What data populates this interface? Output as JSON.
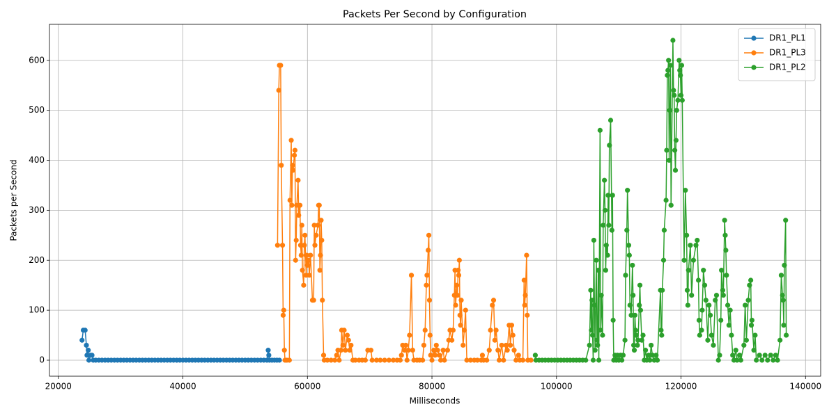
{
  "chart_data": {
    "type": "line",
    "title": "Packets Per Second by Configuration",
    "x_label": "Milliseconds",
    "y_label": "Packets per Second",
    "xlim": [
      18570,
      142430
    ],
    "xticks": [
      20000,
      40000,
      60000,
      80000,
      100000,
      120000,
      140000
    ],
    "ylim": [
      -32,
      672
    ],
    "yticks": [
      0,
      100,
      200,
      300,
      400,
      500,
      600
    ],
    "grid": true,
    "legend": "upper right",
    "series": [
      {
        "name": "DR1_PL1",
        "color": "#1f77b4",
        "x": [
          23800,
          24000,
          24300,
          24500,
          24600,
          24800,
          24900,
          25200,
          25400,
          25600,
          26000,
          26500,
          27000,
          27500,
          28000,
          28500,
          29000,
          29500,
          30000,
          30500,
          31000,
          31500,
          32000,
          32500,
          33000,
          33500,
          34000,
          34500,
          35000,
          35500,
          36000,
          36500,
          37000,
          37500,
          38000,
          38500,
          39000,
          39500,
          40000,
          40500,
          41000,
          41500,
          42000,
          42500,
          43000,
          43500,
          44000,
          44500,
          45000,
          45500,
          46000,
          46500,
          47000,
          47500,
          48000,
          48500,
          49000,
          49500,
          50000,
          50500,
          51000,
          51500,
          52000,
          52500,
          53000,
          53500,
          53700,
          53800,
          53900,
          54300,
          54700,
          55100,
          55500
        ],
        "values": [
          40,
          60,
          60,
          30,
          10,
          20,
          0,
          10,
          10,
          0,
          0,
          0,
          0,
          0,
          0,
          0,
          0,
          0,
          0,
          0,
          0,
          0,
          0,
          0,
          0,
          0,
          0,
          0,
          0,
          0,
          0,
          0,
          0,
          0,
          0,
          0,
          0,
          0,
          0,
          0,
          0,
          0,
          0,
          0,
          0,
          0,
          0,
          0,
          0,
          0,
          0,
          0,
          0,
          0,
          0,
          0,
          0,
          0,
          0,
          0,
          0,
          0,
          0,
          0,
          0,
          0,
          20,
          10,
          0,
          0,
          0,
          0,
          0
        ]
      },
      {
        "name": "DR1_PL3",
        "color": "#ff7f0e",
        "x": [
          55200,
          55400,
          55500,
          55700,
          55800,
          56000,
          56100,
          56200,
          56300,
          56400,
          56700,
          57100,
          57200,
          57400,
          57500,
          57600,
          57700,
          57900,
          58000,
          58100,
          58200,
          58300,
          58500,
          58600,
          58800,
          58900,
          59000,
          59100,
          59200,
          59400,
          59500,
          59600,
          59800,
          59900,
          60000,
          60200,
          60300,
          60500,
          60800,
          61000,
          61100,
          61200,
          61400,
          61700,
          61800,
          61900,
          62000,
          62100,
          62200,
          62300,
          62400,
          62600,
          62700,
          63200,
          63800,
          64400,
          64700,
          64900,
          65100,
          65400,
          65500,
          65700,
          65900,
          66100,
          66400,
          66600,
          66800,
          67000,
          67300,
          67700,
          68300,
          68800,
          69300,
          69700,
          70200,
          70400,
          71100,
          71700,
          72400,
          73100,
          73800,
          74400,
          74900,
          75100,
          75300,
          75600,
          75800,
          76000,
          76200,
          76400,
          76700,
          76900,
          77100,
          77600,
          78000,
          78500,
          78700,
          78900,
          79100,
          79200,
          79400,
          79500,
          79600,
          79700,
          79800,
          80000,
          80300,
          80500,
          80700,
          80900,
          81200,
          81400,
          81800,
          82000,
          82500,
          82700,
          82900,
          83200,
          83400,
          83600,
          83700,
          83800,
          84000,
          84100,
          84200,
          84300,
          84400,
          84500,
          84600,
          84700,
          85000,
          85200,
          85400,
          85600,
          86200,
          86800,
          87300,
          87900,
          88100,
          88300,
          88800,
          89200,
          89400,
          89700,
          89900,
          90100,
          90300,
          90600,
          90800,
          91200,
          91500,
          91900,
          92100,
          92400,
          92600,
          92800,
          93000,
          93200,
          93500,
          93900,
          94100,
          94600,
          94800,
          94900,
          95000,
          95200,
          95300,
          95400,
          95900
        ],
        "values": [
          230,
          540,
          590,
          590,
          390,
          230,
          90,
          100,
          20,
          0,
          0,
          0,
          320,
          440,
          310,
          390,
          380,
          410,
          420,
          200,
          240,
          310,
          360,
          290,
          310,
          230,
          210,
          270,
          180,
          150,
          230,
          250,
          170,
          210,
          190,
          200,
          170,
          210,
          120,
          120,
          270,
          230,
          250,
          270,
          310,
          310,
          180,
          210,
          280,
          240,
          120,
          10,
          0,
          0,
          0,
          0,
          10,
          20,
          0,
          20,
          60,
          30,
          60,
          20,
          50,
          40,
          20,
          30,
          0,
          0,
          0,
          0,
          0,
          20,
          20,
          0,
          0,
          0,
          0,
          0,
          0,
          0,
          0,
          10,
          30,
          20,
          30,
          0,
          20,
          50,
          170,
          20,
          0,
          0,
          0,
          0,
          30,
          60,
          150,
          170,
          220,
          250,
          120,
          50,
          10,
          0,
          20,
          10,
          30,
          20,
          10,
          0,
          20,
          0,
          20,
          40,
          60,
          40,
          60,
          130,
          180,
          110,
          150,
          130,
          180,
          170,
          200,
          90,
          70,
          120,
          30,
          60,
          100,
          0,
          0,
          0,
          0,
          0,
          10,
          0,
          0,
          20,
          60,
          110,
          120,
          40,
          60,
          20,
          0,
          30,
          0,
          30,
          20,
          70,
          30,
          70,
          50,
          20,
          0,
          10,
          0,
          0,
          160,
          110,
          130,
          210,
          90,
          0,
          0
        ]
      },
      {
        "name": "DR1_PL2",
        "color": "#2ca02c",
        "x": [
          96600,
          96700,
          97200,
          97700,
          98200,
          98700,
          99200,
          99700,
          100200,
          100700,
          101200,
          101700,
          102200,
          102700,
          103200,
          103700,
          104200,
          104700,
          105300,
          105500,
          105600,
          105700,
          105800,
          105900,
          106000,
          106100,
          106200,
          106400,
          106500,
          106600,
          106700,
          106800,
          107000,
          107100,
          107200,
          107400,
          107500,
          107700,
          107800,
          107900,
          108000,
          108200,
          108300,
          108400,
          108500,
          108700,
          108900,
          109000,
          109100,
          109200,
          109400,
          109600,
          109800,
          110000,
          110300,
          110500,
          110700,
          111000,
          111100,
          111300,
          111400,
          111600,
          111700,
          111800,
          112000,
          112200,
          112300,
          112400,
          112500,
          112600,
          112700,
          112800,
          113000,
          113100,
          113300,
          113400,
          113500,
          113700,
          113900,
          114100,
          114300,
          114500,
          114800,
          115000,
          115200,
          115400,
          115700,
          116000,
          116200,
          116700,
          116800,
          116900,
          117000,
          117200,
          117300,
          117600,
          117700,
          117800,
          117900,
          118000,
          118100,
          118200,
          118300,
          118400,
          118700,
          118800,
          118900,
          119000,
          119100,
          119200,
          119300,
          119500,
          119700,
          119800,
          119900,
          120000,
          120100,
          120200,
          120500,
          120700,
          120900,
          121000,
          121100,
          121200,
          121500,
          121700,
          122000,
          122400,
          122600,
          122800,
          122900,
          123000,
          123300,
          123400,
          123600,
          123800,
          124000,
          124300,
          124500,
          124700,
          124900,
          125200,
          125500,
          125700,
          126000,
          126200,
          126400,
          126500,
          126700,
          126800,
          127000,
          127100,
          127200,
          127300,
          127500,
          127700,
          127900,
          128100,
          128300,
          128500,
          128800,
          129000,
          129400,
          129600,
          130100,
          130300,
          130500,
          130800,
          131000,
          131200,
          131300,
          131400,
          131700,
          131900,
          132100,
          132600,
          133000,
          133500,
          133900,
          134400,
          134800,
          135200,
          135500,
          135900,
          136100,
          136300,
          136400,
          136500,
          136600,
          136800,
          136900
        ],
        "values": [
          10,
          0,
          0,
          0,
          0,
          0,
          0,
          0,
          0,
          0,
          0,
          0,
          0,
          0,
          0,
          0,
          0,
          0,
          30,
          140,
          60,
          120,
          50,
          0,
          240,
          110,
          20,
          200,
          40,
          30,
          180,
          0,
          460,
          60,
          130,
          50,
          270,
          360,
          300,
          180,
          230,
          210,
          330,
          270,
          430,
          480,
          260,
          330,
          80,
          0,
          10,
          0,
          10,
          0,
          10,
          0,
          10,
          40,
          170,
          260,
          340,
          230,
          210,
          110,
          90,
          190,
          130,
          30,
          20,
          90,
          60,
          50,
          30,
          40,
          110,
          150,
          100,
          40,
          50,
          0,
          20,
          0,
          10,
          0,
          30,
          10,
          0,
          10,
          0,
          140,
          60,
          50,
          140,
          200,
          260,
          320,
          420,
          570,
          580,
          600,
          400,
          500,
          590,
          310,
          640,
          540,
          530,
          420,
          380,
          440,
          500,
          520,
          600,
          580,
          570,
          530,
          590,
          520,
          200,
          340,
          250,
          140,
          110,
          180,
          230,
          130,
          200,
          230,
          240,
          160,
          80,
          50,
          60,
          100,
          180,
          150,
          120,
          40,
          110,
          90,
          50,
          30,
          120,
          130,
          0,
          10,
          80,
          180,
          140,
          130,
          280,
          250,
          220,
          170,
          110,
          70,
          100,
          50,
          10,
          0,
          20,
          0,
          10,
          0,
          30,
          110,
          40,
          120,
          150,
          160,
          70,
          80,
          20,
          50,
          0,
          10,
          0,
          10,
          0,
          10,
          0,
          10,
          0,
          40,
          170,
          130,
          120,
          70,
          190,
          280,
          50
        ]
      }
    ]
  }
}
